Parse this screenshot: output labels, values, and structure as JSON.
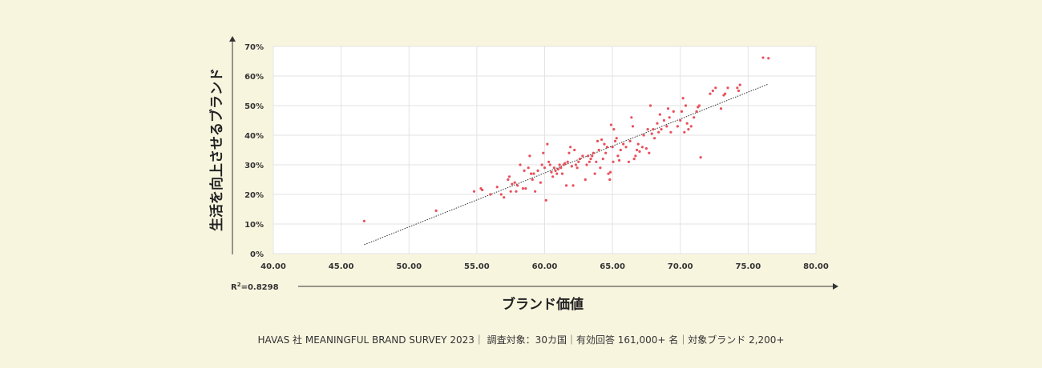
{
  "chart_data": {
    "type": "scatter",
    "xlabel": "ブランド価値",
    "ylabel": "生活を向上させるブランド",
    "xlim": [
      40,
      80
    ],
    "ylim": [
      0,
      70
    ],
    "x_ticks": [
      "40.00",
      "45.00",
      "50.00",
      "55.00",
      "60.00",
      "65.00",
      "70.00",
      "75.00",
      "80.00"
    ],
    "y_ticks": [
      "0%",
      "10%",
      "20%",
      "30%",
      "40%",
      "50%",
      "60%",
      "70%"
    ],
    "grid": true,
    "point_color": "#e8505b",
    "trendline": {
      "x": [
        46.7,
        76.5
      ],
      "y": [
        3,
        57.3
      ]
    },
    "r2": {
      "prefix": "R",
      "sup": "2",
      "value": "=0.8298"
    },
    "points": [
      [
        46.7,
        11
      ],
      [
        52,
        14.5
      ],
      [
        54.8,
        21
      ],
      [
        55.3,
        22
      ],
      [
        55.4,
        21.5
      ],
      [
        56,
        20
      ],
      [
        56.5,
        22.5
      ],
      [
        56.8,
        20
      ],
      [
        57,
        19
      ],
      [
        57.3,
        25
      ],
      [
        57.4,
        26
      ],
      [
        57.5,
        21
      ],
      [
        57.6,
        23.5
      ],
      [
        57.8,
        24
      ],
      [
        57.9,
        21
      ],
      [
        58,
        23
      ],
      [
        58.2,
        30
      ],
      [
        58.4,
        22
      ],
      [
        58.5,
        28
      ],
      [
        58.6,
        22
      ],
      [
        58.8,
        29
      ],
      [
        58.9,
        33
      ],
      [
        59,
        27
      ],
      [
        59.1,
        25
      ],
      [
        59.2,
        27
      ],
      [
        59.3,
        21
      ],
      [
        59.5,
        28
      ],
      [
        59.7,
        24
      ],
      [
        59.8,
        30
      ],
      [
        59.9,
        34
      ],
      [
        60,
        29
      ],
      [
        60.1,
        18
      ],
      [
        60.2,
        37
      ],
      [
        60.3,
        31
      ],
      [
        60.4,
        30
      ],
      [
        60.5,
        27.5
      ],
      [
        60.6,
        26
      ],
      [
        60.7,
        29
      ],
      [
        60.8,
        28
      ],
      [
        60.9,
        27
      ],
      [
        61,
        28.5
      ],
      [
        61.1,
        30
      ],
      [
        61.2,
        29
      ],
      [
        61.3,
        27
      ],
      [
        61.4,
        30
      ],
      [
        61.5,
        30.5
      ],
      [
        61.6,
        23
      ],
      [
        61.7,
        31
      ],
      [
        61.8,
        34
      ],
      [
        61.9,
        36
      ],
      [
        62,
        29.5
      ],
      [
        62.1,
        23
      ],
      [
        62.2,
        35
      ],
      [
        62.3,
        30
      ],
      [
        62.4,
        29
      ],
      [
        62.5,
        31
      ],
      [
        62.6,
        32
      ],
      [
        62.8,
        33
      ],
      [
        63,
        25
      ],
      [
        63.1,
        30
      ],
      [
        63.2,
        33
      ],
      [
        63.3,
        31
      ],
      [
        63.4,
        32
      ],
      [
        63.5,
        33
      ],
      [
        63.6,
        34
      ],
      [
        63.7,
        27
      ],
      [
        63.8,
        31
      ],
      [
        63.9,
        38
      ],
      [
        64,
        35
      ],
      [
        64.1,
        29
      ],
      [
        64.2,
        38.5
      ],
      [
        64.3,
        32
      ],
      [
        64.4,
        37
      ],
      [
        64.5,
        34
      ],
      [
        64.6,
        36
      ],
      [
        64.7,
        27
      ],
      [
        64.8,
        25
      ],
      [
        64.85,
        27.5
      ],
      [
        64.9,
        43.5
      ],
      [
        65,
        36
      ],
      [
        65.05,
        31
      ],
      [
        65.1,
        42
      ],
      [
        65.2,
        38
      ],
      [
        65.3,
        39
      ],
      [
        65.4,
        33
      ],
      [
        65.5,
        31.5
      ],
      [
        65.6,
        35
      ],
      [
        65.8,
        37
      ],
      [
        66,
        36
      ],
      [
        66.2,
        31
      ],
      [
        66.3,
        38
      ],
      [
        66.4,
        46
      ],
      [
        66.5,
        43
      ],
      [
        66.6,
        32
      ],
      [
        66.7,
        33
      ],
      [
        66.8,
        35
      ],
      [
        66.9,
        37
      ],
      [
        67,
        34.5
      ],
      [
        67.2,
        36
      ],
      [
        67.3,
        40
      ],
      [
        67.5,
        35.5
      ],
      [
        67.6,
        42
      ],
      [
        67.7,
        34
      ],
      [
        67.8,
        50
      ],
      [
        67.9,
        40.5
      ],
      [
        68,
        42
      ],
      [
        68.1,
        39
      ],
      [
        68.3,
        44
      ],
      [
        68.4,
        41
      ],
      [
        68.5,
        47
      ],
      [
        68.6,
        42
      ],
      [
        68.8,
        45
      ],
      [
        69,
        43
      ],
      [
        69.1,
        49
      ],
      [
        69.2,
        46
      ],
      [
        69.3,
        41
      ],
      [
        69.5,
        48
      ],
      [
        69.8,
        43
      ],
      [
        70,
        45
      ],
      [
        70.1,
        48
      ],
      [
        70.2,
        52.5
      ],
      [
        70.3,
        41
      ],
      [
        70.4,
        50
      ],
      [
        70.5,
        44
      ],
      [
        70.6,
        42
      ],
      [
        70.8,
        43
      ],
      [
        71,
        46
      ],
      [
        71.2,
        48
      ],
      [
        71.3,
        49.5
      ],
      [
        71.4,
        50
      ],
      [
        71.5,
        32.5
      ],
      [
        72.2,
        54
      ],
      [
        72.4,
        55
      ],
      [
        72.6,
        56
      ],
      [
        73,
        49
      ],
      [
        73.2,
        53.5
      ],
      [
        73.3,
        54
      ],
      [
        73.5,
        56
      ],
      [
        74.2,
        56
      ],
      [
        74.3,
        55
      ],
      [
        74.4,
        57
      ],
      [
        76.1,
        66.2
      ],
      [
        76.5,
        66
      ]
    ]
  },
  "source_note": "HAVAS 社 MEANINGFUL BRAND SURVEY 2023｜ 調査対象：30カ国｜有効回答 161,000+ 名｜対象ブランド 2,200+"
}
